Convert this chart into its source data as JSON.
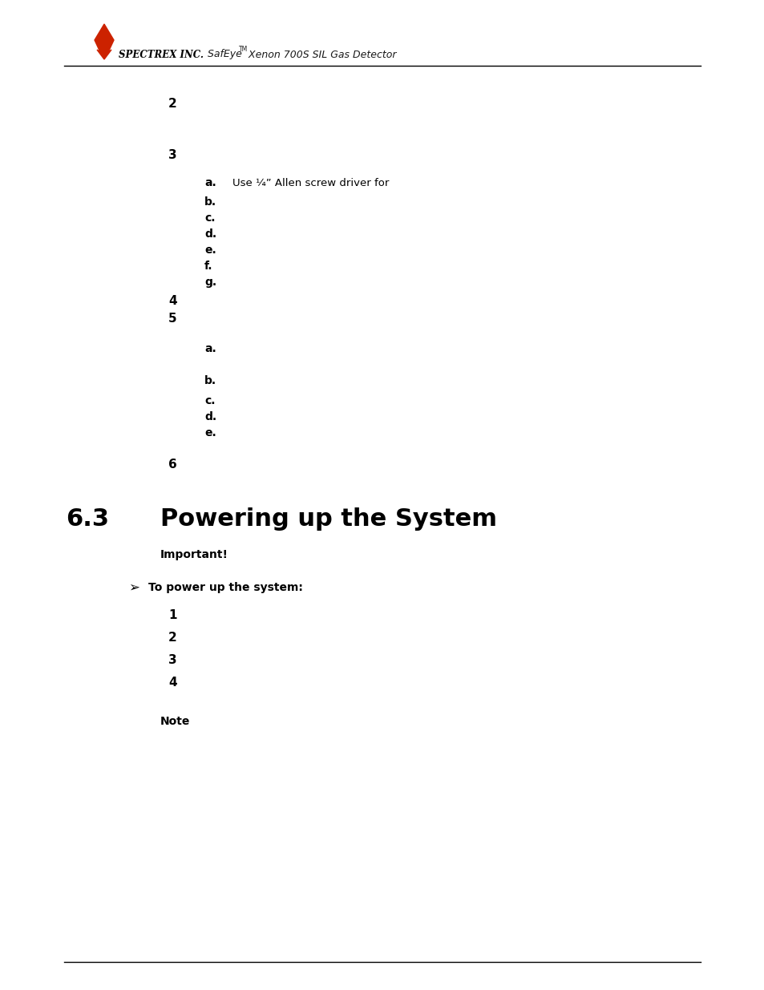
{
  "page_bg": "#ffffff",
  "line_color": "#000000",
  "header_logo_bold": "SPECTREX INC.",
  "header_italic": " SafEye",
  "header_tm": "TM",
  "header_rest": " Xenon 700S SIL Gas Detector",
  "flame_color": "#cc2200",
  "section_num": "6.3",
  "section_text": "Powering up the System",
  "important": "Important!",
  "arrow": "➢",
  "to_power": "To power up the system:",
  "note": "Note",
  "items_upper": [
    {
      "label": "2",
      "indent": 1,
      "extra": ""
    },
    {
      "label": "3",
      "indent": 1,
      "extra": ""
    },
    {
      "label": "a.",
      "indent": 2,
      "extra": "Use ¼” Allen screw driver for"
    },
    {
      "label": "b.",
      "indent": 2,
      "extra": ""
    },
    {
      "label": "c.",
      "indent": 2,
      "extra": ""
    },
    {
      "label": "d.",
      "indent": 2,
      "extra": ""
    },
    {
      "label": "e.",
      "indent": 2,
      "extra": ""
    },
    {
      "label": "f.",
      "indent": 2,
      "extra": ""
    },
    {
      "label": "g.",
      "indent": 2,
      "extra": ""
    },
    {
      "label": "4",
      "indent": 1,
      "extra": ""
    },
    {
      "label": "5",
      "indent": 1,
      "extra": ""
    },
    {
      "label": "a.",
      "indent": 2,
      "extra": "",
      "gap": true
    },
    {
      "label": "b.",
      "indent": 2,
      "extra": "",
      "gap": true
    },
    {
      "label": "c.",
      "indent": 2,
      "extra": ""
    },
    {
      "label": "d.",
      "indent": 2,
      "extra": ""
    },
    {
      "label": "e.",
      "indent": 2,
      "extra": ""
    },
    {
      "label": "6",
      "indent": 1,
      "extra": "",
      "gap": true
    }
  ],
  "items_lower": [
    "1",
    "2",
    "3",
    "4"
  ]
}
